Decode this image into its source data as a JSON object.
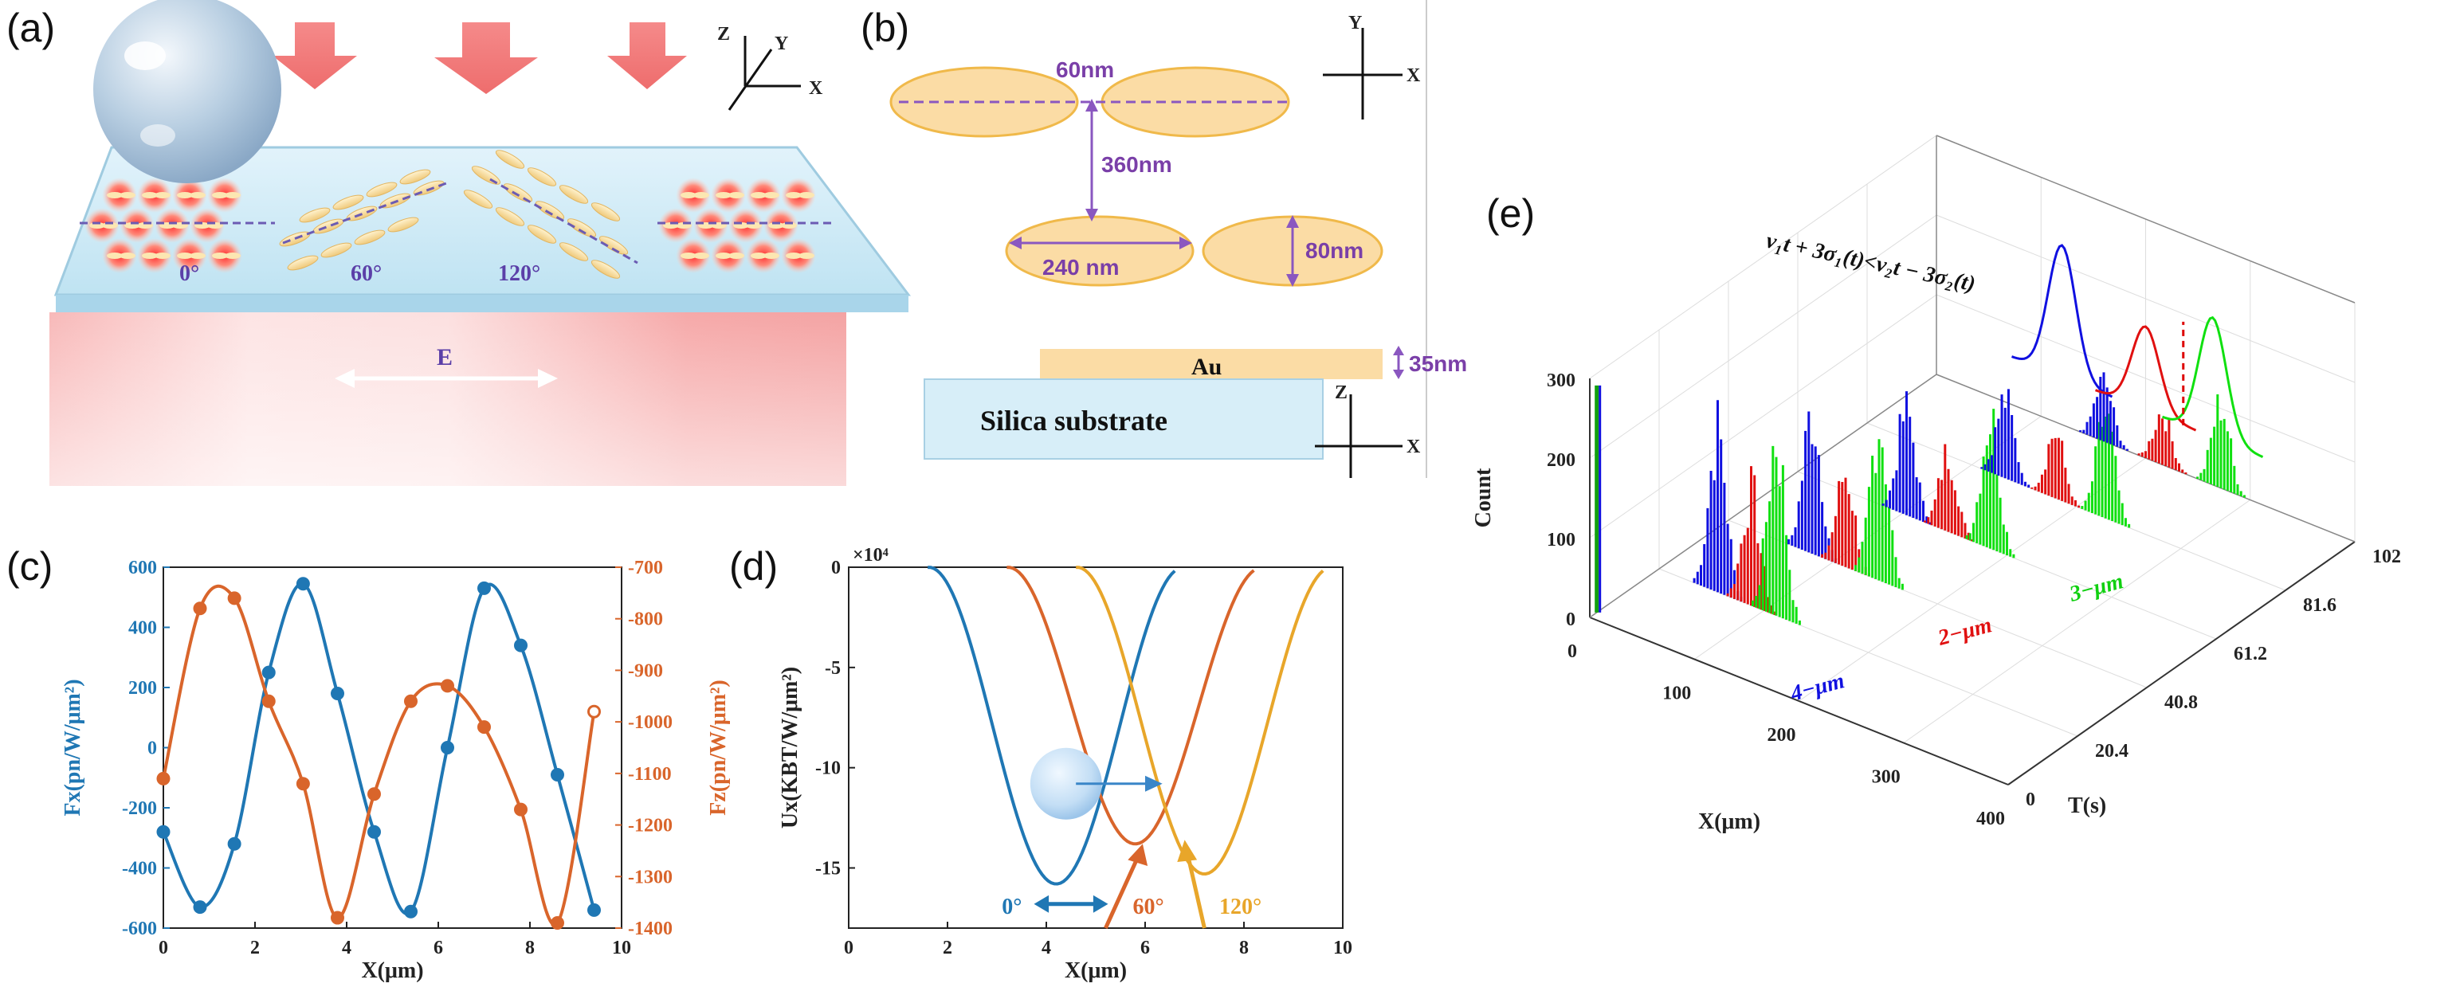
{
  "panel_labels": [
    "(a)",
    "(b)",
    "(c)",
    "(d)",
    "(e)"
  ],
  "panel_a": {
    "angles": [
      "0°",
      "60°",
      "120°"
    ],
    "field_label": "E",
    "axes": {
      "z": "Z",
      "y": "Y",
      "x": "X"
    }
  },
  "panel_b": {
    "gap": "60nm",
    "period": "360nm",
    "length": "240 nm",
    "width": "80nm",
    "thickness": "35nm",
    "metal": "Au",
    "substrate": "Silica substrate",
    "axes_top": {
      "y": "Y",
      "x": "X"
    },
    "axes_bottom": {
      "z": "Z",
      "x": "X"
    }
  },
  "panel_e_text": {
    "formula": "v₁t + 3σ₁(t)<v₂t − 3σ₂(t)",
    "labels": [
      "4−μm",
      "2−μm",
      "3−μm"
    ],
    "zlabel": "Count",
    "xlabel": "X(μm)",
    "ylabel": "T(s)"
  },
  "chart_data": [
    {
      "id": "c",
      "type": "line",
      "xlabel": "X(μm)",
      "ylabel_left": "Fx(pn/W/μm²)",
      "ylabel_right": "Fz(pn/W/μm²)",
      "xlim": [
        0,
        10
      ],
      "ylim_left": [
        -600,
        600
      ],
      "ylim_right": [
        -1400,
        -700
      ],
      "xticks": [
        "0",
        "2",
        "4",
        "6",
        "8",
        "10"
      ],
      "yticks_left": [
        "-600",
        "-400",
        "-200",
        "0",
        "200",
        "400",
        "600"
      ],
      "yticks_right": [
        "-1400",
        "-1300",
        "-1200",
        "-1100",
        "-1000",
        "-900",
        "-800",
        "-700"
      ],
      "series": [
        {
          "name": "Fx",
          "axis": "left",
          "color": "#1f77b4",
          "x": [
            0,
            0.8,
            1.55,
            2.3,
            3.05,
            3.8,
            4.6,
            5.4,
            6.2,
            7.0,
            7.8,
            8.6,
            9.4
          ],
          "y": [
            -280,
            -530,
            -320,
            250,
            545,
            180,
            -280,
            -545,
            0,
            530,
            340,
            -90,
            -540
          ]
        },
        {
          "name": "Fz",
          "axis": "right",
          "color": "#d9652b",
          "x": [
            0,
            0.8,
            1.55,
            2.3,
            3.05,
            3.8,
            4.6,
            5.4,
            6.2,
            7.0,
            7.8,
            8.6,
            9.4
          ],
          "y": [
            -1110,
            -780,
            -760,
            -960,
            -1120,
            -1380,
            -1140,
            -960,
            -930,
            -1010,
            -1170,
            -1390,
            -980
          ]
        }
      ]
    },
    {
      "id": "d",
      "type": "line",
      "xlabel": "X(μm)",
      "ylabel": "Ux(KBT/W/μm²)",
      "exponent": "×10⁴",
      "xlim": [
        0,
        10
      ],
      "ylim": [
        -18,
        0
      ],
      "xticks": [
        "0",
        "2",
        "4",
        "6",
        "8",
        "10"
      ],
      "yticks": [
        "0",
        "-5",
        "-10",
        "-15"
      ],
      "series": [
        {
          "name": "0°",
          "color": "#1f77b4",
          "x0": 1.6,
          "x1": 6.6,
          "min_x": 4.2,
          "min_y": -15.8
        },
        {
          "name": "60°",
          "color": "#d9652b",
          "x0": 3.2,
          "x1": 8.2,
          "min_x": 5.8,
          "min_y": -13.8
        },
        {
          "name": "120°",
          "color": "#e8a62a",
          "x0": 4.6,
          "x1": 9.6,
          "min_x": 7.2,
          "min_y": -15.3
        }
      ],
      "angle_labels": [
        "0°",
        "60°",
        "120°"
      ]
    },
    {
      "id": "e",
      "type": "bar3d",
      "zlim": [
        0,
        300
      ],
      "zticks": [
        "0",
        "100",
        "200",
        "300"
      ],
      "xticks": [
        "0",
        "100",
        "200",
        "300",
        "400"
      ],
      "yticks": [
        "0",
        "20.4",
        "40.8",
        "61.2",
        "81.6",
        "102"
      ],
      "xlabel": "X(μm)",
      "ylabel": "T(s)",
      "zlabel": "Count",
      "series": [
        "4−μm",
        "2−μm",
        "3−μm"
      ]
    }
  ]
}
